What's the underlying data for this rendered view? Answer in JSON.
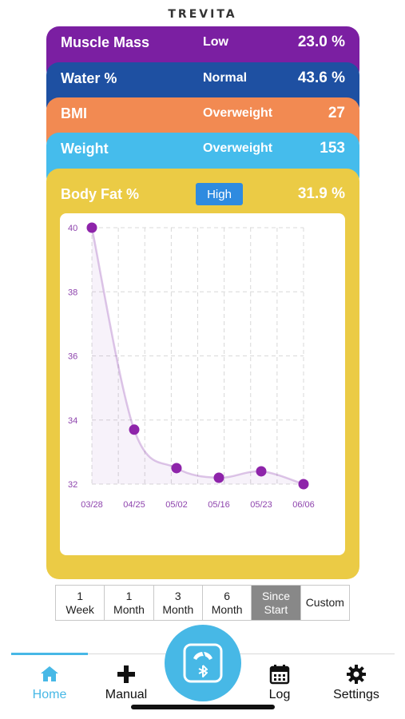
{
  "brand": "TREVITA",
  "metrics": [
    {
      "name": "Muscle Mass",
      "status": "Low",
      "value": "23.0 %",
      "color": "#7B1FA2"
    },
    {
      "name": "Water %",
      "status": "Normal",
      "value": "43.6 %",
      "color": "#1E50A2"
    },
    {
      "name": "BMI",
      "status": "Overweight",
      "value": "27",
      "color": "#F28A52"
    },
    {
      "name": "Weight",
      "status": "Overweight",
      "value": "153",
      "color": "#45BCEC"
    }
  ],
  "body_fat": {
    "name": "Body Fat %",
    "badge": "High",
    "value": "31.9 %",
    "color": "#EBCB45"
  },
  "chart_data": {
    "type": "line",
    "x": [
      "03/28",
      "04/25",
      "05/02",
      "05/16",
      "05/23",
      "06/06"
    ],
    "series": [
      {
        "values": [
          40.0,
          33.7,
          32.5,
          32.2,
          32.4,
          32.0
        ]
      }
    ],
    "yticks": [
      32,
      34,
      36,
      38,
      40
    ],
    "ylim": [
      32,
      40
    ],
    "grid": true,
    "line_color": "#7B1FA2"
  },
  "ranges": [
    {
      "line1": "1",
      "line2": "Week",
      "active": false
    },
    {
      "line1": "1",
      "line2": "Month",
      "active": false
    },
    {
      "line1": "3",
      "line2": "Month",
      "active": false
    },
    {
      "line1": "6",
      "line2": "Month",
      "active": false
    },
    {
      "line1": "Since",
      "line2": "Start",
      "active": true
    },
    {
      "line1": "Custom",
      "line2": "",
      "active": false
    }
  ],
  "tabs": {
    "home": "Home",
    "manual": "Manual",
    "log": "Log",
    "settings": "Settings"
  },
  "icons": {
    "home": "home-icon",
    "manual": "plus-icon",
    "scale": "scale-icon",
    "log": "calendar-icon",
    "settings": "gear-icon"
  }
}
